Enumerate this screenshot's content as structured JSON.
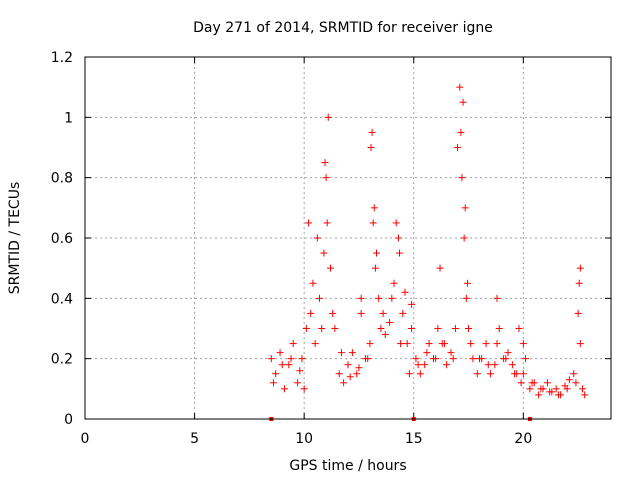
{
  "chart_data": {
    "type": "scatter",
    "title": "Day 271 of 2014, SRMTID for receiver igne",
    "xlabel": "GPS time / hours",
    "ylabel": "SRMTID / TECUs",
    "xlim": [
      0,
      24
    ],
    "ylim": [
      0,
      1.2
    ],
    "grid": true,
    "x_ticks": [
      0,
      5,
      10,
      15,
      20
    ],
    "x_tick_labels": [
      "0",
      "5",
      "10",
      "15",
      "20"
    ],
    "y_ticks": [
      0,
      0.2,
      0.4,
      0.6,
      0.8,
      1.0,
      1.2
    ],
    "y_tick_labels": [
      "0",
      "0.2",
      "0.4",
      "0.6",
      "0.8",
      "1",
      "1.2"
    ],
    "marker": "+",
    "color": "#ff0000",
    "series": [
      {
        "name": "SRMTID",
        "x": [
          8.5,
          8.7,
          8.9,
          9.1,
          9.3,
          9.5,
          9.7,
          9.9,
          10.1,
          10.3,
          10.5,
          10.7,
          10.9,
          11.0,
          11.1,
          11.2,
          11.4,
          11.6,
          11.8,
          12.0,
          12.2,
          12.4,
          12.6,
          12.8,
          13.0,
          13.1,
          13.2,
          13.3,
          13.4,
          13.5,
          13.7,
          13.9,
          14.1,
          14.3,
          14.5,
          14.7,
          14.9,
          15.1,
          15.3,
          15.5,
          15.7,
          15.9,
          16.1,
          16.3,
          16.5,
          16.7,
          16.9,
          17.0,
          17.1,
          17.2,
          17.3,
          17.4,
          17.5,
          17.7,
          17.9,
          18.1,
          18.3,
          18.5,
          18.7,
          18.9,
          19.1,
          19.3,
          19.5,
          19.7,
          19.9,
          20.1,
          20.3,
          20.5,
          20.7,
          20.9,
          21.1,
          21.3,
          21.5,
          21.7,
          21.9,
          22.1,
          22.3,
          22.5,
          22.6,
          22.7,
          22.8,
          8.6,
          9.0,
          9.4,
          9.8,
          10.0,
          10.4,
          10.8,
          11.3,
          11.7,
          12.1,
          12.5,
          12.9,
          13.6,
          14.0,
          14.4,
          14.8,
          15.2,
          15.6,
          16.0,
          16.4,
          16.8,
          17.6,
          18.0,
          18.4,
          18.8,
          19.2,
          19.6,
          20.0,
          20.4,
          20.8,
          21.2,
          21.6,
          22.0,
          22.4,
          10.95,
          11.05,
          10.6,
          10.2,
          13.05,
          13.15,
          13.25,
          14.2,
          14.35,
          17.15,
          17.25,
          17.35,
          17.45,
          16.2,
          18.8,
          19.8,
          20.0,
          22.55,
          22.6,
          12.6,
          14.6,
          14.9
        ],
        "y": [
          0.2,
          0.15,
          0.22,
          0.1,
          0.18,
          0.25,
          0.12,
          0.2,
          0.3,
          0.35,
          0.25,
          0.4,
          0.55,
          0.8,
          1.0,
          0.5,
          0.3,
          0.15,
          0.12,
          0.18,
          0.22,
          0.15,
          0.35,
          0.2,
          0.25,
          0.95,
          0.7,
          0.55,
          0.4,
          0.3,
          0.28,
          0.32,
          0.45,
          0.6,
          0.35,
          0.25,
          0.3,
          0.2,
          0.15,
          0.18,
          0.25,
          0.2,
          0.3,
          0.25,
          0.18,
          0.22,
          0.3,
          0.9,
          1.1,
          0.8,
          0.6,
          0.4,
          0.3,
          0.2,
          0.15,
          0.2,
          0.25,
          0.15,
          0.18,
          0.3,
          0.2,
          0.22,
          0.18,
          0.15,
          0.12,
          0.2,
          0.1,
          0.12,
          0.08,
          0.1,
          0.12,
          0.09,
          0.1,
          0.08,
          0.11,
          0.13,
          0.15,
          0.35,
          0.5,
          0.1,
          0.08,
          0.12,
          0.18,
          0.2,
          0.16,
          0.1,
          0.45,
          0.3,
          0.35,
          0.22,
          0.14,
          0.17,
          0.2,
          0.35,
          0.4,
          0.25,
          0.15,
          0.18,
          0.22,
          0.2,
          0.25,
          0.2,
          0.25,
          0.2,
          0.18,
          0.25,
          0.2,
          0.15,
          0.15,
          0.12,
          0.1,
          0.09,
          0.08,
          0.1,
          0.12,
          0.85,
          0.65,
          0.6,
          0.65,
          0.9,
          0.65,
          0.5,
          0.65,
          0.55,
          0.95,
          1.05,
          0.7,
          0.45,
          0.5,
          0.4,
          0.3,
          0.25,
          0.45,
          0.25,
          0.4,
          0.42,
          0.38
        ]
      }
    ],
    "baseline_markers": {
      "x": [
        8.5,
        15.0,
        20.3
      ],
      "y": [
        0,
        0,
        0
      ]
    }
  }
}
